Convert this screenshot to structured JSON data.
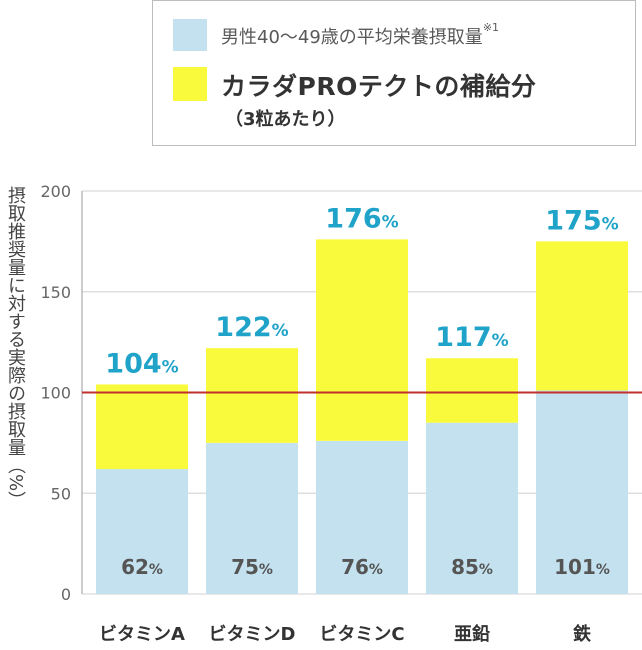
{
  "legend": {
    "intake_label": "男性40～49歳の平均栄養摂取量",
    "intake_note_mark": "※1",
    "supplement_label": "カラダPROテクトの補給分",
    "supplement_note": "（3粒あたり）"
  },
  "colors": {
    "intake": "#c3e1ee",
    "supplement": "#fafa3c",
    "reference_line": "#c0302c",
    "total_label": "#1fa3c8",
    "intake_label": "#555555",
    "grid": "#d9d9d9"
  },
  "chart_data": {
    "type": "bar",
    "stacked": true,
    "ylabel": "摂取推奨量に対する実際の摂取量（%）",
    "ylim": [
      0,
      200
    ],
    "yticks": [
      0,
      50,
      100,
      150,
      200
    ],
    "reference_line": 100,
    "categories": [
      "ビタミンA",
      "ビタミンD",
      "ビタミンC",
      "亜鉛",
      "鉄"
    ],
    "series": [
      {
        "name": "男性40～49歳の平均栄養摂取量",
        "values": [
          62,
          75,
          76,
          85,
          101
        ]
      },
      {
        "name": "カラダPROテクトの補給分",
        "values": [
          42,
          47,
          100,
          32,
          74
        ]
      }
    ],
    "totals": [
      104,
      122,
      176,
      117,
      175
    ],
    "intake_labels": [
      "62",
      "75",
      "76",
      "85",
      "101"
    ],
    "total_labels": [
      "104",
      "122",
      "176",
      "117",
      "175"
    ],
    "percent_unit": "%"
  }
}
